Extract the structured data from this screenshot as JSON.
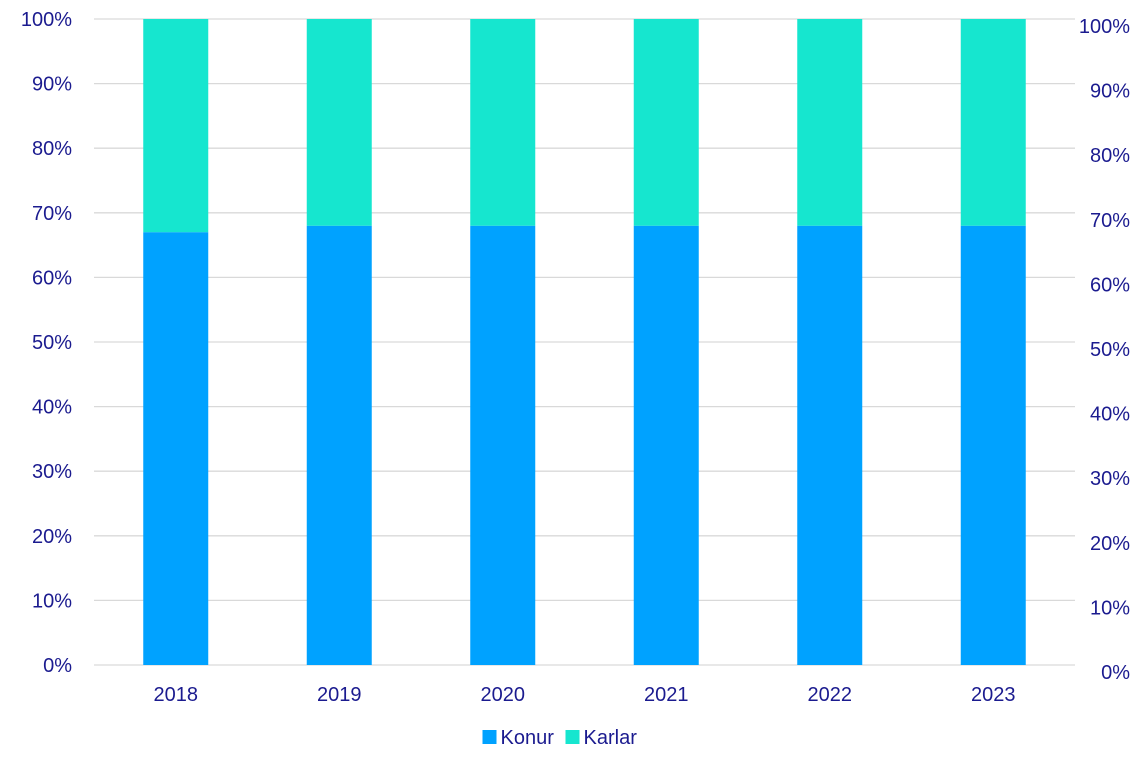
{
  "chart_data": {
    "type": "bar",
    "stacked": true,
    "categories": [
      "2018",
      "2019",
      "2020",
      "2021",
      "2022",
      "2023"
    ],
    "series": [
      {
        "name": "Konur",
        "color": "#00A2FF",
        "values": [
          67,
          68,
          68,
          68,
          68,
          68
        ]
      },
      {
        "name": "Karlar",
        "color": "#16E6CF",
        "values": [
          33,
          32,
          32,
          32,
          32,
          32
        ]
      }
    ],
    "yticks": [
      "0%",
      "10%",
      "20%",
      "30%",
      "40%",
      "50%",
      "60%",
      "70%",
      "80%",
      "90%",
      "100%"
    ],
    "ylim": [
      0,
      100
    ],
    "y2ticks": [
      "0%",
      "10%",
      "20%",
      "30%",
      "40%",
      "50%",
      "60%",
      "70%",
      "80%",
      "90%",
      "100%"
    ],
    "grid": true,
    "legend_position": "bottom",
    "tick_color": "#1B1B8F",
    "grid_color": "#D9D9D9"
  }
}
